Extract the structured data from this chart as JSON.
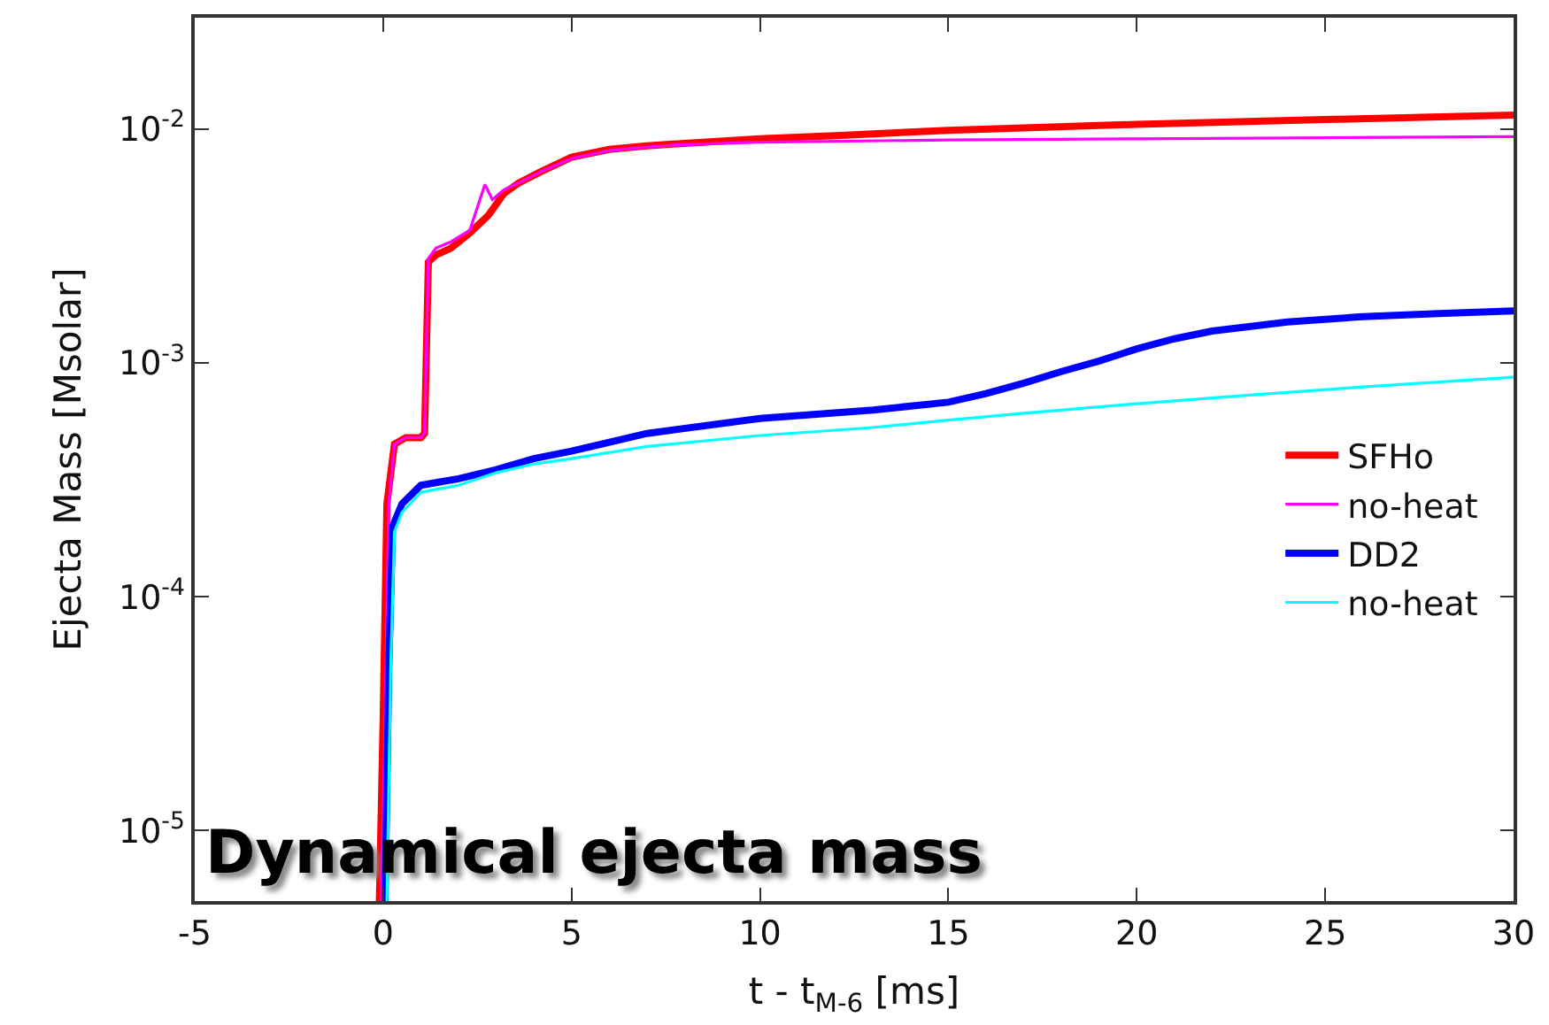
{
  "chart_data": {
    "type": "line",
    "xlabel": "t - t$_{M-6}$ [ms]",
    "ylabel": "Ejecta Mass [Msolar]",
    "log": "y",
    "xlim": [
      -5,
      30
    ],
    "xticks": [
      -5,
      0,
      5,
      10,
      15,
      20,
      25,
      30
    ],
    "ylim": [
      5e-06,
      0.03
    ],
    "yticks": [
      {
        "value": 1e-05,
        "label": "10$^{-5}$"
      },
      {
        "value": 0.0001,
        "label": "10$^{-4}$"
      },
      {
        "value": 0.001,
        "label": "10$^{-3}$"
      },
      {
        "value": 0.01,
        "label": "10$^{-2}$"
      }
    ],
    "legend": "bottom right",
    "marker": "none",
    "line_style": "solid",
    "annotations": [
      "Dynamical ejecta mass"
    ],
    "series": [
      {
        "name": "SFHo",
        "color": "#ff0000",
        "x": [
          -0.1,
          0.0,
          0.1,
          0.3,
          0.6,
          1.0,
          1.1,
          1.2,
          1.4,
          1.8,
          2.3,
          2.8,
          3.2,
          3.6,
          4.2,
          5,
          6,
          7,
          8,
          10,
          12,
          15,
          20,
          25,
          30
        ],
        "values": [
          5e-06,
          3e-05,
          0.00025,
          0.00045,
          0.00048,
          0.00048,
          0.0005,
          0.0027,
          0.0029,
          0.0031,
          0.0036,
          0.0043,
          0.0053,
          0.0059,
          0.0066,
          0.0076,
          0.0082,
          0.0085,
          0.0087,
          0.0091,
          0.0094,
          0.0099,
          0.0105,
          0.011,
          0.0115
        ]
      },
      {
        "name": "no-heat",
        "color": "#ff00ff",
        "x": [
          -0.05,
          0.05,
          0.15,
          0.3,
          0.6,
          1.0,
          1.1,
          1.2,
          1.4,
          1.8,
          2.3,
          2.7,
          2.9,
          3.2,
          3.6,
          4.2,
          5,
          6,
          7,
          8,
          10,
          15,
          20,
          25,
          30
        ],
        "values": [
          5e-06,
          3e-05,
          0.00025,
          0.00045,
          0.00048,
          0.00048,
          0.0005,
          0.0028,
          0.0031,
          0.0033,
          0.0037,
          0.0058,
          0.005,
          0.0055,
          0.0059,
          0.0066,
          0.0075,
          0.0081,
          0.0084,
          0.0086,
          0.0088,
          0.009,
          0.0091,
          0.0092,
          0.0093
        ]
      },
      {
        "name": "DD2",
        "color": "#0000ff",
        "x": [
          0.05,
          0.15,
          0.25,
          0.5,
          1.0,
          1.5,
          2.0,
          3.0,
          4.0,
          5,
          7,
          10,
          13,
          15,
          16,
          17,
          18,
          19,
          20,
          21,
          22,
          24,
          26,
          28,
          30
        ],
        "values": [
          5e-06,
          5e-05,
          0.0002,
          0.00025,
          0.0003,
          0.00031,
          0.00032,
          0.00035,
          0.00039,
          0.00042,
          0.0005,
          0.00058,
          0.00063,
          0.00068,
          0.00074,
          0.00082,
          0.00092,
          0.00102,
          0.00115,
          0.00127,
          0.00137,
          0.0015,
          0.00158,
          0.00163,
          0.00167
        ]
      },
      {
        "name": "no-heat",
        "color": "#00ffff",
        "x": [
          0.1,
          0.2,
          0.3,
          0.5,
          1.0,
          1.5,
          2.0,
          3.0,
          4.0,
          5,
          7,
          10,
          13,
          15,
          17,
          20,
          23,
          26,
          30
        ],
        "values": [
          5e-06,
          5e-05,
          0.00019,
          0.00023,
          0.00028,
          0.00029,
          0.0003,
          0.00034,
          0.00037,
          0.00039,
          0.00044,
          0.00049,
          0.00053,
          0.00057,
          0.00061,
          0.00067,
          0.00073,
          0.00079,
          0.00087
        ]
      }
    ]
  }
}
